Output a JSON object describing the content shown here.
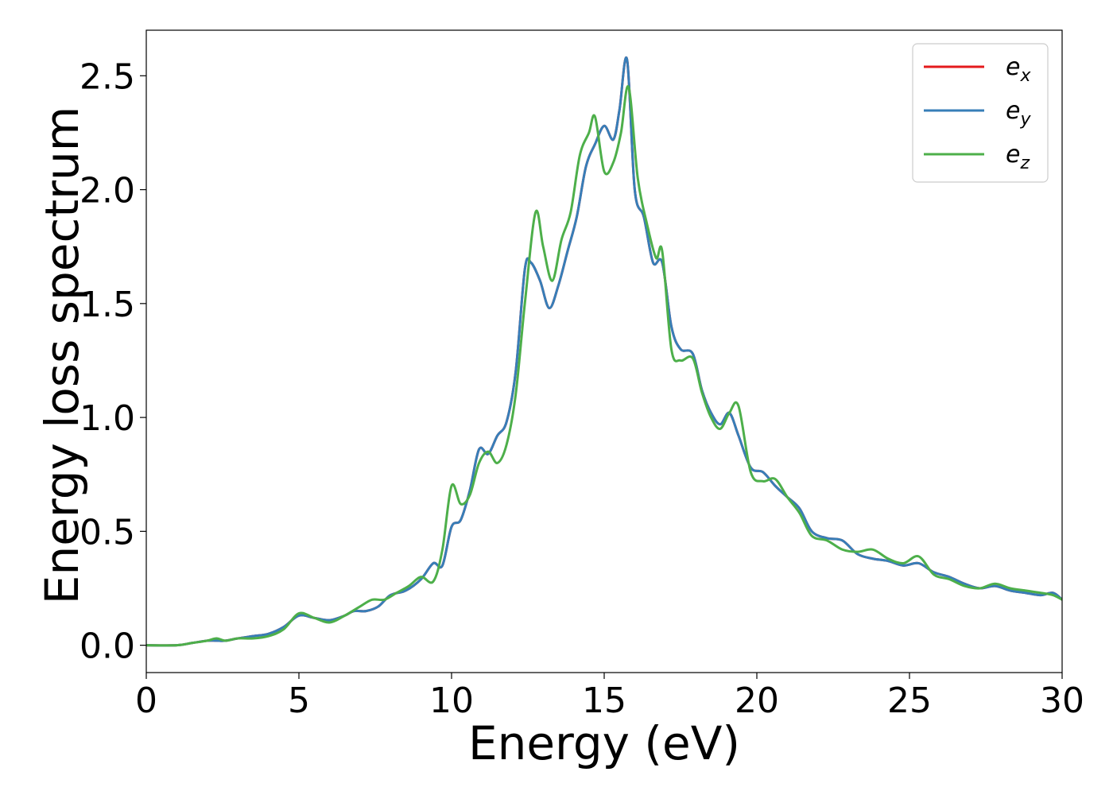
{
  "chart_data": {
    "type": "line",
    "title": "",
    "xlabel": "Energy (eV)",
    "ylabel": "Energy loss spectrum",
    "xlim": [
      0,
      30
    ],
    "ylim": [
      -0.12,
      2.7
    ],
    "xticks": [
      0,
      5,
      10,
      15,
      20,
      25,
      30
    ],
    "xtick_labels": [
      "0",
      "5",
      "10",
      "15",
      "20",
      "25",
      "30"
    ],
    "yticks": [
      0.0,
      0.5,
      1.0,
      1.5,
      2.0,
      2.5
    ],
    "ytick_labels": [
      "0.0",
      "0.5",
      "1.0",
      "1.5",
      "2.0",
      "2.5"
    ],
    "grid": false,
    "legend_position": "top-right",
    "series": [
      {
        "name": "e_x",
        "legend_base": "e",
        "legend_sub": "x",
        "color": "#e41a1c",
        "x": [
          0,
          1,
          1.5,
          2,
          2.3,
          2.6,
          3,
          3.5,
          4,
          4.5,
          5,
          5.5,
          6,
          6.5,
          6.8,
          7.2,
          7.6,
          8,
          8.5,
          9,
          9.4,
          9.7,
          10,
          10.3,
          10.6,
          10.9,
          11.2,
          11.5,
          11.8,
          12.1,
          12.4,
          12.6,
          12.9,
          13.2,
          13.5,
          13.8,
          14.1,
          14.4,
          14.7,
          15,
          15.3,
          15.5,
          15.75,
          16,
          16.3,
          16.6,
          16.9,
          17.2,
          17.5,
          17.9,
          18.2,
          18.5,
          18.8,
          19.1,
          19.4,
          19.8,
          20.2,
          20.6,
          21,
          21.4,
          21.8,
          22.3,
          22.8,
          23.3,
          23.8,
          24.3,
          24.8,
          25.3,
          25.8,
          26.3,
          26.8,
          27.3,
          27.8,
          28.3,
          28.8,
          29.3,
          29.7,
          30
        ],
        "values": [
          0.0,
          0.0,
          0.01,
          0.02,
          0.02,
          0.02,
          0.03,
          0.04,
          0.05,
          0.08,
          0.13,
          0.12,
          0.11,
          0.13,
          0.15,
          0.15,
          0.17,
          0.22,
          0.24,
          0.29,
          0.36,
          0.35,
          0.52,
          0.55,
          0.68,
          0.86,
          0.84,
          0.92,
          0.98,
          1.2,
          1.65,
          1.68,
          1.6,
          1.48,
          1.58,
          1.73,
          1.88,
          2.1,
          2.2,
          2.28,
          2.22,
          2.35,
          2.57,
          2.0,
          1.88,
          1.68,
          1.68,
          1.4,
          1.3,
          1.28,
          1.12,
          1.02,
          0.97,
          1.02,
          0.92,
          0.78,
          0.76,
          0.7,
          0.65,
          0.6,
          0.5,
          0.47,
          0.46,
          0.4,
          0.38,
          0.37,
          0.35,
          0.36,
          0.32,
          0.3,
          0.27,
          0.25,
          0.26,
          0.24,
          0.23,
          0.22,
          0.23,
          0.2
        ]
      },
      {
        "name": "e_y",
        "legend_base": "e",
        "legend_sub": "y",
        "color": "#377eb8",
        "x": [
          0,
          1,
          1.5,
          2,
          2.3,
          2.6,
          3,
          3.5,
          4,
          4.5,
          5,
          5.5,
          6,
          6.5,
          6.8,
          7.2,
          7.6,
          8,
          8.5,
          9,
          9.4,
          9.7,
          10,
          10.3,
          10.6,
          10.9,
          11.2,
          11.5,
          11.8,
          12.1,
          12.4,
          12.6,
          12.9,
          13.2,
          13.5,
          13.8,
          14.1,
          14.4,
          14.7,
          15,
          15.3,
          15.5,
          15.75,
          16,
          16.3,
          16.6,
          16.9,
          17.2,
          17.5,
          17.9,
          18.2,
          18.5,
          18.8,
          19.1,
          19.4,
          19.8,
          20.2,
          20.6,
          21,
          21.4,
          21.8,
          22.3,
          22.8,
          23.3,
          23.8,
          24.3,
          24.8,
          25.3,
          25.8,
          26.3,
          26.8,
          27.3,
          27.8,
          28.3,
          28.8,
          29.3,
          29.7,
          30
        ],
        "values": [
          0.0,
          0.0,
          0.01,
          0.02,
          0.02,
          0.02,
          0.03,
          0.04,
          0.05,
          0.08,
          0.13,
          0.12,
          0.11,
          0.13,
          0.15,
          0.15,
          0.17,
          0.22,
          0.24,
          0.29,
          0.36,
          0.35,
          0.52,
          0.55,
          0.68,
          0.86,
          0.84,
          0.92,
          0.98,
          1.2,
          1.65,
          1.68,
          1.6,
          1.48,
          1.58,
          1.73,
          1.88,
          2.1,
          2.2,
          2.28,
          2.22,
          2.35,
          2.57,
          2.0,
          1.88,
          1.68,
          1.68,
          1.4,
          1.3,
          1.28,
          1.12,
          1.02,
          0.97,
          1.02,
          0.92,
          0.78,
          0.76,
          0.7,
          0.65,
          0.6,
          0.5,
          0.47,
          0.46,
          0.4,
          0.38,
          0.37,
          0.35,
          0.36,
          0.32,
          0.3,
          0.27,
          0.25,
          0.26,
          0.24,
          0.23,
          0.22,
          0.23,
          0.2
        ]
      },
      {
        "name": "e_z",
        "legend_base": "e",
        "legend_sub": "z",
        "color": "#4daf4a",
        "x": [
          0,
          1,
          1.5,
          2,
          2.3,
          2.6,
          3,
          3.5,
          4,
          4.5,
          5,
          5.5,
          6,
          6.5,
          7,
          7.4,
          7.8,
          8.2,
          8.6,
          9,
          9.4,
          9.7,
          10,
          10.3,
          10.6,
          10.9,
          11.2,
          11.5,
          11.8,
          12.1,
          12.4,
          12.75,
          13,
          13.3,
          13.6,
          13.9,
          14.2,
          14.5,
          14.7,
          15,
          15.3,
          15.55,
          15.8,
          16.1,
          16.4,
          16.7,
          16.9,
          17.2,
          17.5,
          17.9,
          18.2,
          18.5,
          18.8,
          19.1,
          19.4,
          19.8,
          20.2,
          20.6,
          21,
          21.4,
          21.8,
          22.3,
          22.8,
          23.3,
          23.8,
          24.3,
          24.8,
          25.3,
          25.8,
          26.3,
          26.8,
          27.3,
          27.8,
          28.3,
          28.8,
          29.3,
          29.7,
          30
        ],
        "values": [
          0.0,
          0.0,
          0.01,
          0.02,
          0.03,
          0.02,
          0.03,
          0.03,
          0.04,
          0.07,
          0.14,
          0.12,
          0.1,
          0.13,
          0.17,
          0.2,
          0.2,
          0.23,
          0.26,
          0.3,
          0.28,
          0.42,
          0.7,
          0.62,
          0.66,
          0.8,
          0.85,
          0.8,
          0.88,
          1.1,
          1.5,
          1.9,
          1.75,
          1.6,
          1.78,
          1.9,
          2.15,
          2.25,
          2.32,
          2.08,
          2.12,
          2.25,
          2.45,
          2.05,
          1.85,
          1.7,
          1.73,
          1.3,
          1.25,
          1.26,
          1.11,
          1.0,
          0.95,
          1.02,
          1.05,
          0.76,
          0.72,
          0.73,
          0.65,
          0.58,
          0.48,
          0.46,
          0.42,
          0.41,
          0.42,
          0.38,
          0.36,
          0.39,
          0.31,
          0.29,
          0.26,
          0.25,
          0.27,
          0.25,
          0.24,
          0.23,
          0.22,
          0.2
        ]
      }
    ]
  }
}
